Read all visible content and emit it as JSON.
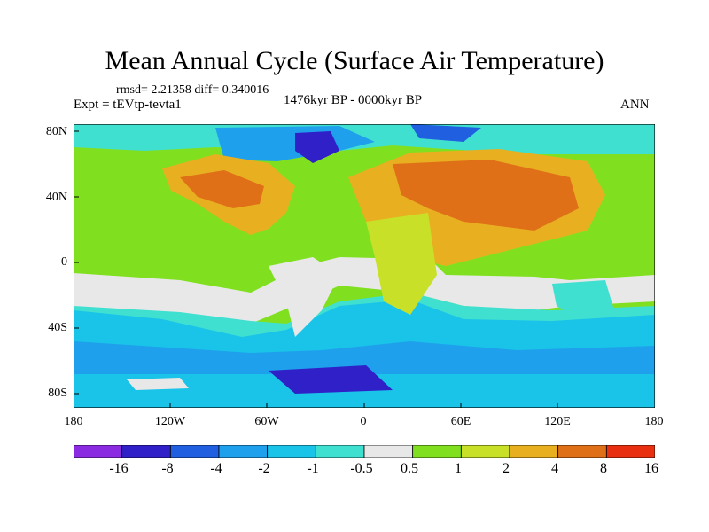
{
  "header": {
    "title": "Mean Annual Cycle (Surface Air Temperature)",
    "stats": "rmsd= 2.21358 diff= 0.340016",
    "experiment": "Expt = tEVtp-tevta1",
    "period": "1476kyr BP - 0000kyr BP",
    "season": "ANN"
  },
  "axes": {
    "lat_labels": [
      "80N",
      "40N",
      "0",
      "40S",
      "80S"
    ],
    "lon_labels": [
      "180",
      "120W",
      "60W",
      "0",
      "60E",
      "120E",
      "180"
    ]
  },
  "colorbar": {
    "labels": [
      "-16",
      "-8",
      "-4",
      "-2",
      "-1",
      "-0.5",
      "0.5",
      "1",
      "2",
      "4",
      "8",
      "16"
    ],
    "colors": [
      "#8a2be2",
      "#3020c8",
      "#1f5fe0",
      "#1fa0ec",
      "#19c4e8",
      "#40e0d0",
      "#e8e8e8",
      "#80e020",
      "#c8e028",
      "#e8b020",
      "#e07018",
      "#e83010"
    ]
  }
}
